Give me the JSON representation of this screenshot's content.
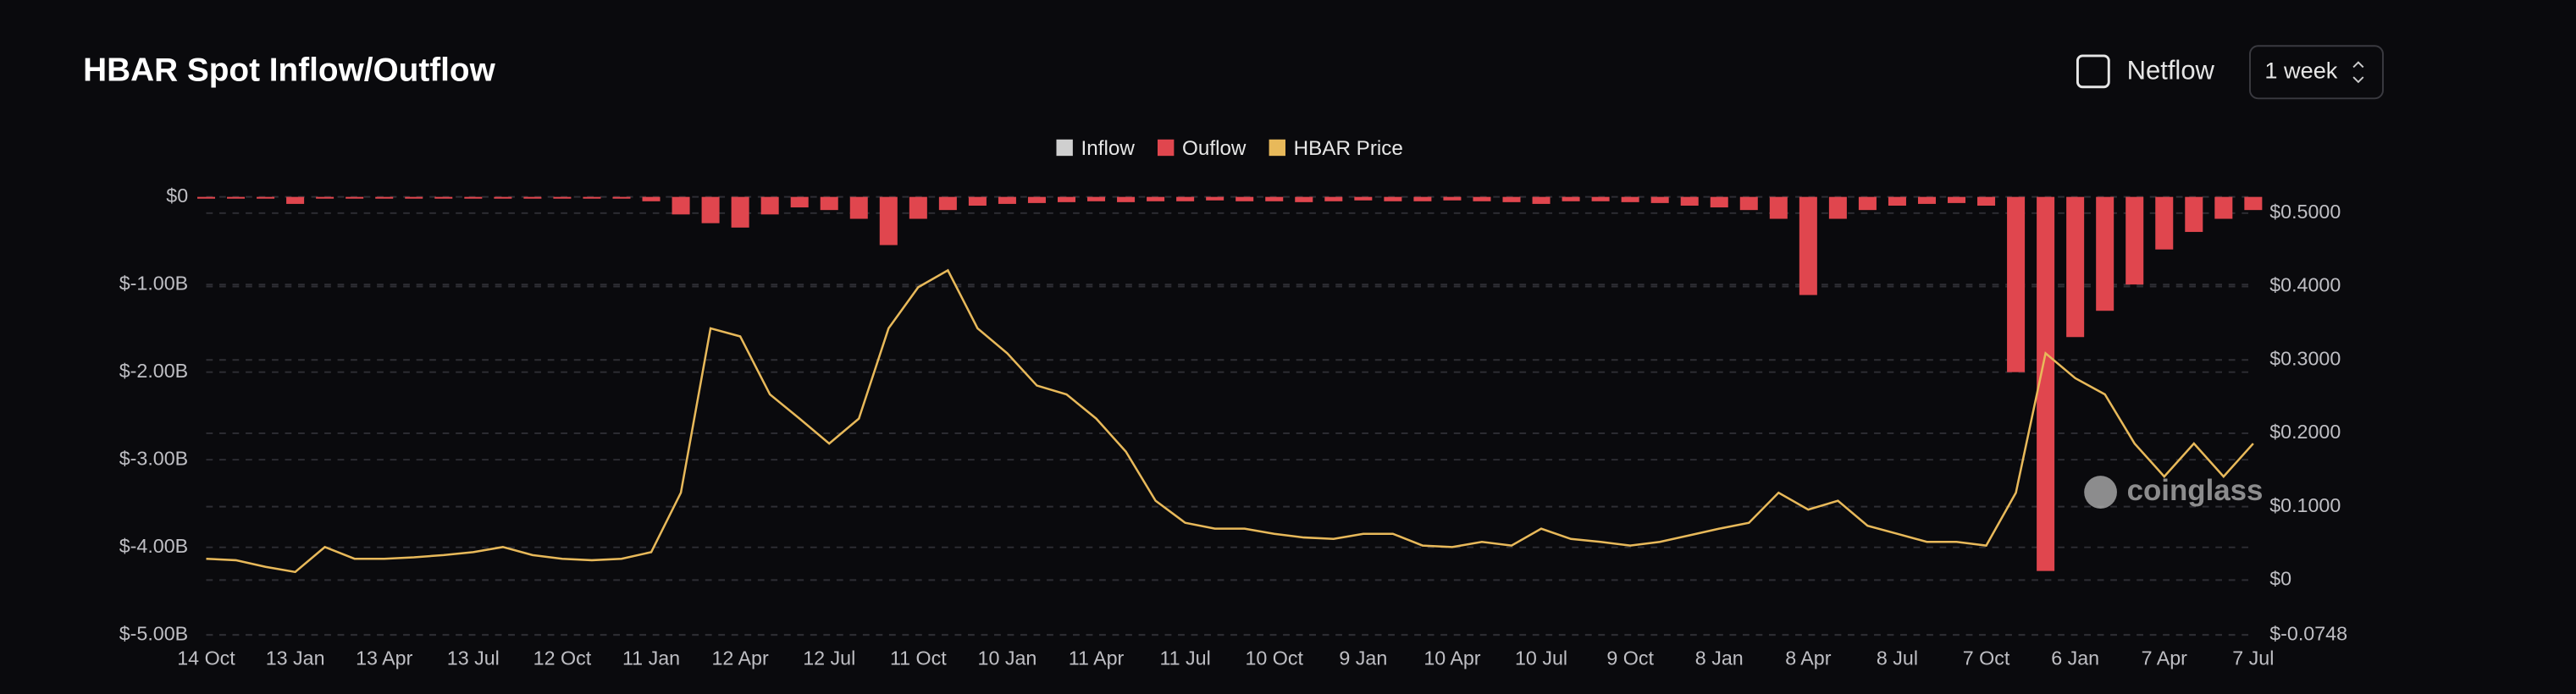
{
  "chart_data": {
    "type": "bar-line",
    "title": "HBAR Spot Inflow/Outflow",
    "controls": {
      "toggle": "Netflow",
      "interval": "1 week"
    },
    "watermark": "coinglass",
    "categories": [
      "14 Oct",
      null,
      null,
      "13 Jan",
      null,
      null,
      "13 Apr",
      null,
      null,
      "13 Jul",
      null,
      null,
      "12 Oct",
      null,
      null,
      "11 Jan",
      null,
      null,
      "12 Apr",
      null,
      null,
      "12 Jul",
      null,
      null,
      "11 Oct",
      null,
      null,
      "10 Jan",
      null,
      null,
      "11 Apr",
      null,
      null,
      "11 Jul",
      null,
      null,
      "10 Oct",
      null,
      null,
      "9 Jan",
      null,
      null,
      "10 Apr",
      null,
      null,
      "10 Jul",
      null,
      null,
      "9 Oct",
      null,
      null,
      "8 Jan",
      null,
      null,
      "8 Apr",
      null,
      null,
      "8 Jul",
      null,
      null,
      "7 Oct",
      null,
      null,
      "6 Jan",
      null,
      null,
      "7 Apr",
      null,
      null,
      "7 Jul"
    ],
    "series": [
      {
        "name": "Inflow",
        "color": "#cfcfcf",
        "kind": "bar",
        "values": [
          0,
          0,
          0,
          0,
          0,
          0,
          0,
          0,
          0,
          0,
          0,
          0,
          0,
          0,
          0,
          0,
          0,
          0,
          0,
          0,
          0,
          0,
          0,
          0,
          0,
          0,
          0,
          0,
          0,
          0,
          0,
          0,
          0,
          0,
          0,
          0,
          0,
          0,
          0,
          0,
          0,
          0,
          0,
          0,
          0,
          0,
          0,
          0,
          0,
          0,
          0,
          0,
          0,
          0,
          0,
          0,
          0,
          0,
          0,
          0,
          0,
          0,
          0,
          0,
          0,
          0,
          0,
          0,
          0,
          0
        ]
      },
      {
        "name": "Ouflow",
        "color": "#e0464e",
        "kind": "bar",
        "values": [
          -0.02,
          -0.02,
          -0.02,
          -0.08,
          -0.02,
          -0.02,
          -0.02,
          -0.02,
          -0.02,
          -0.02,
          -0.02,
          -0.02,
          -0.02,
          -0.02,
          -0.02,
          -0.05,
          -0.2,
          -0.3,
          -0.35,
          -0.2,
          -0.12,
          -0.15,
          -0.25,
          -0.55,
          -0.25,
          -0.15,
          -0.1,
          -0.08,
          -0.07,
          -0.06,
          -0.05,
          -0.06,
          -0.05,
          -0.05,
          -0.04,
          -0.05,
          -0.05,
          -0.06,
          -0.05,
          -0.04,
          -0.05,
          -0.05,
          -0.04,
          -0.05,
          -0.06,
          -0.08,
          -0.05,
          -0.05,
          -0.06,
          -0.07,
          -0.1,
          -0.12,
          -0.15,
          -0.25,
          -1.12,
          -0.25,
          -0.15,
          -0.1,
          -0.08,
          -0.07,
          -0.1,
          -2.0,
          -4.27,
          -1.6,
          -1.3,
          -1.0,
          -0.6,
          -0.4,
          -0.25,
          -0.15
        ]
      },
      {
        "name": "HBAR Price",
        "color": "#e8b95a",
        "kind": "line",
        "axis": "y2",
        "values": [
          0.029,
          0.027,
          0.018,
          0.011,
          0.045,
          0.029,
          0.029,
          0.031,
          0.034,
          0.038,
          0.045,
          0.034,
          0.029,
          0.027,
          0.029,
          0.038,
          0.119,
          0.343,
          0.332,
          0.253,
          0.22,
          0.186,
          0.22,
          0.343,
          0.399,
          0.422,
          0.343,
          0.309,
          0.265,
          0.253,
          0.22,
          0.175,
          0.108,
          0.078,
          0.07,
          0.07,
          0.063,
          0.058,
          0.056,
          0.063,
          0.063,
          0.047,
          0.045,
          0.052,
          0.047,
          0.07,
          0.056,
          0.052,
          0.047,
          0.052,
          0.061,
          0.07,
          0.078,
          0.119,
          0.096,
          0.108,
          0.074,
          0.063,
          0.052,
          0.052,
          0.047,
          0.119,
          0.309,
          0.275,
          0.253,
          0.186,
          0.141,
          0.186,
          0.141,
          0.186
        ]
      }
    ],
    "ylim": [
      -5,
      0.15
    ],
    "yticks": [
      {
        "value": 0,
        "label": "$0"
      },
      {
        "value": -1,
        "label": "$-1.00B"
      },
      {
        "value": -2,
        "label": "$-2.00B"
      },
      {
        "value": -3,
        "label": "$-3.00B"
      },
      {
        "value": -4,
        "label": "$-4.00B"
      },
      {
        "value": -5,
        "label": "$-5.00B"
      }
    ],
    "y2lim": [
      -0.0748,
      0.54
    ],
    "y2ticks": [
      {
        "value": 0.5,
        "label": "$0.5000"
      },
      {
        "value": 0.4,
        "label": "$0.4000"
      },
      {
        "value": 0.3,
        "label": "$0.3000"
      },
      {
        "value": 0.2,
        "label": "$0.2000"
      },
      {
        "value": 0.1,
        "label": "$0.1000"
      },
      {
        "value": 0,
        "label": "$0"
      },
      {
        "value": -0.0748,
        "label": "$-0.0748"
      }
    ],
    "grid": true,
    "legend": "top"
  }
}
